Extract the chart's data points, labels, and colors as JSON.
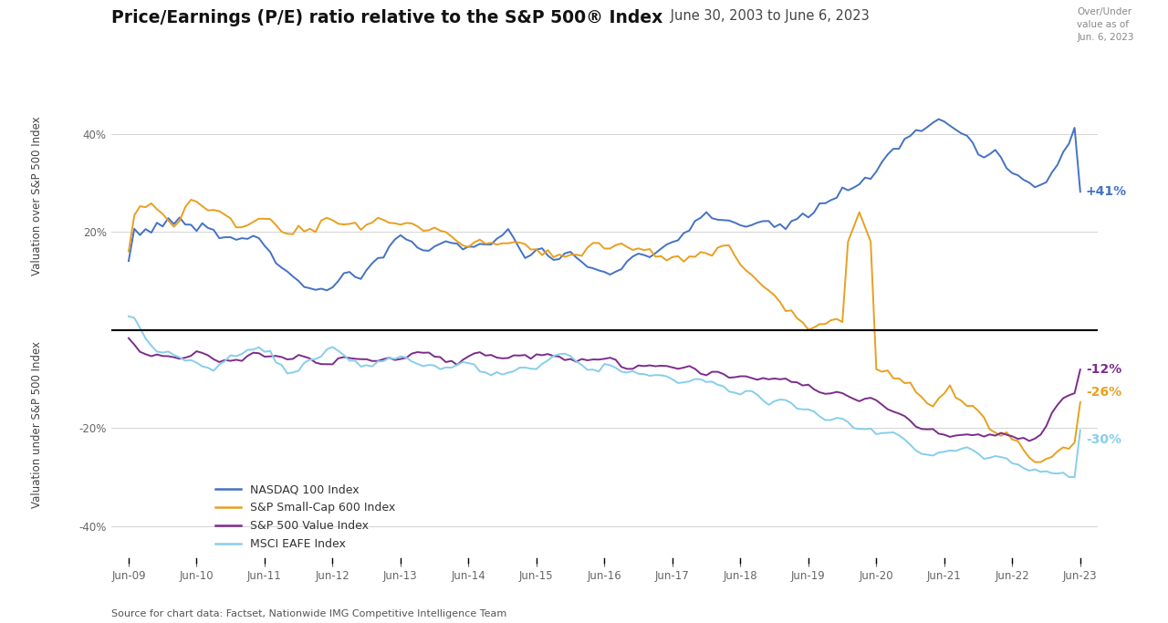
{
  "title_bold": "Price/Earnings (P/E) ratio relative to the S&P 500® Index",
  "title_normal": " June 30, 2003 to June 6, 2023",
  "annotation_top_right": "Over/Under\nvalue as of\nJun. 6, 2023",
  "ylabel_top": "Valuation over S&P 500 Index",
  "ylabel_bottom": "Valuation under S&P 500 Index",
  "source": "Source for chart data: Factset, Nationwide IMG Competitive Intelligence Team",
  "end_labels": {
    "nasdaq": "+41%",
    "smallcap": "-26%",
    "value": "-12%",
    "eafe": "-30%"
  },
  "colors": {
    "nasdaq": "#4472C4",
    "smallcap": "#E8A020",
    "value": "#7B2D8B",
    "eafe": "#87CEEB"
  },
  "ylim": [
    -0.47,
    0.52
  ],
  "yticks": [
    -0.4,
    -0.2,
    0.0,
    0.2,
    0.4
  ],
  "xtick_labels": [
    "Jun-09",
    "Jun-10",
    "Jun-11",
    "Jun-12",
    "Jun-13",
    "Jun-14",
    "Jun-15",
    "Jun-16",
    "Jun-17",
    "Jun-18",
    "Jun-19",
    "Jun-20",
    "Jun-21",
    "Jun-22",
    "Jun-23"
  ]
}
